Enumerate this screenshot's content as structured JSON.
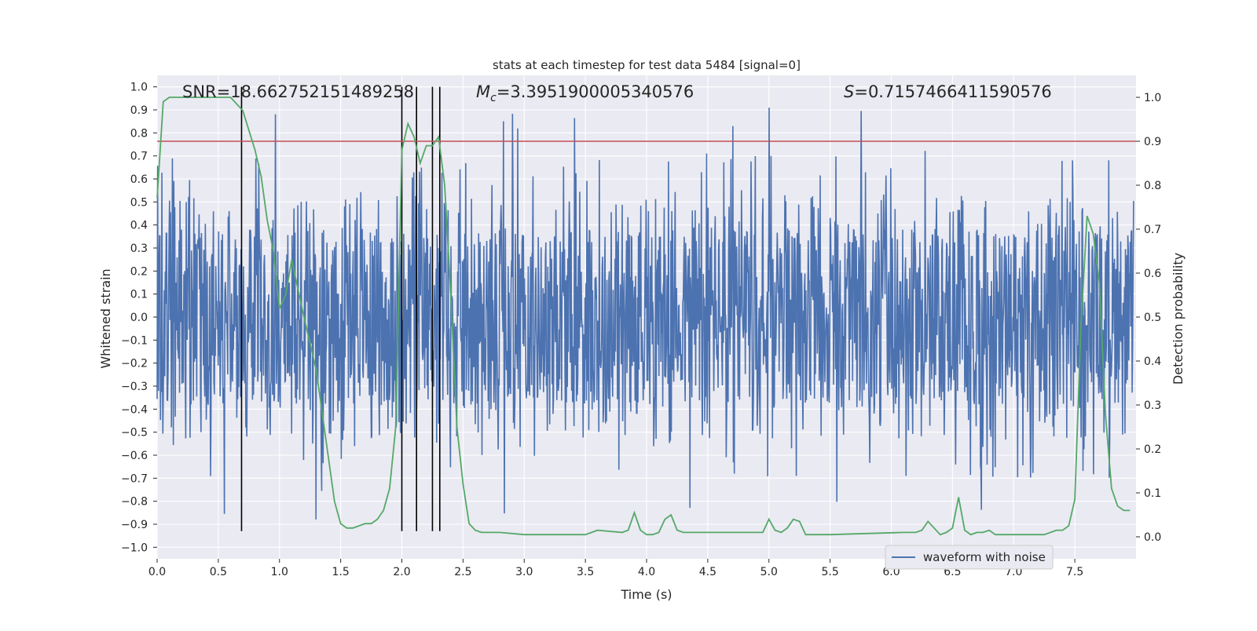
{
  "chart_data": {
    "type": "line",
    "title": "stats at each timestep for test data 5484 [signal=0]",
    "xlabel": "Time (s)",
    "ylabel_left": "Whitened strain",
    "ylabel_right": "Detection probability",
    "xlim": [
      0,
      8
    ],
    "ylim_left": [
      -1.05,
      1.05
    ],
    "ylim_right": [
      -0.05,
      1.05
    ],
    "x_ticks": [
      0.0,
      0.5,
      1.0,
      1.5,
      2.0,
      2.5,
      3.0,
      3.5,
      4.0,
      4.5,
      5.0,
      5.5,
      6.0,
      6.5,
      7.0,
      7.5
    ],
    "x_tick_labels": [
      "0.0",
      "0.5",
      "1.0",
      "1.5",
      "2.0",
      "2.5",
      "3.0",
      "3.5",
      "4.0",
      "4.5",
      "5.0",
      "5.5",
      "6.0",
      "6.5",
      "7.0",
      "7.5"
    ],
    "y_left_ticks": [
      1.0,
      0.9,
      0.8,
      0.7,
      0.6,
      0.5,
      0.4,
      0.3,
      0.2,
      0.1,
      0.0,
      -0.1,
      -0.2,
      -0.3,
      -0.4,
      -0.5,
      -0.6,
      -0.7,
      -0.8,
      -0.9,
      -1.0
    ],
    "y_left_tick_labels": [
      "1.0",
      "0.9",
      "0.8",
      "0.7",
      "0.6",
      "0.5",
      "0.4",
      "0.3",
      "0.2",
      "0.1",
      "0.0",
      "−0.1",
      "−0.2",
      "−0.3",
      "−0.4",
      "−0.5",
      "−0.6",
      "−0.7",
      "−0.8",
      "−0.9",
      "−1.0"
    ],
    "y_right_ticks": [
      1.0,
      0.9,
      0.8,
      0.7,
      0.6,
      0.5,
      0.4,
      0.3,
      0.2,
      0.1,
      0.0
    ],
    "y_right_tick_labels": [
      "1.0",
      "0.9",
      "0.8",
      "0.7",
      "0.6",
      "0.5",
      "0.4",
      "0.3",
      "0.2",
      "0.1",
      "0.0"
    ],
    "annotations": {
      "snr": "SNR=18.662752151489258",
      "mc_symbol": "M",
      "mc_subscript": "c",
      "mc_value": "=3.3951900005340576",
      "s_symbol": "S",
      "s_value": "=0.7157466411590576"
    },
    "legend": {
      "label": "waveform with noise",
      "placement": "lower-right"
    },
    "threshold_line": {
      "value": 0.9,
      "axis": "right",
      "color": "#c44e52"
    },
    "event_markers": {
      "times": [
        0.69,
        2.0,
        2.12,
        2.25,
        2.31
      ],
      "ymin": -0.93,
      "ymax": 1.0,
      "color": "#000000"
    },
    "series": [
      {
        "name": "waveform with noise",
        "axis": "left",
        "color": "#4c72b0",
        "kind": "noise",
        "n_samples": 2048,
        "base_amplitude": 0.38,
        "seed": 5484
      },
      {
        "name": "Detection probability",
        "axis": "right",
        "color": "#55a868",
        "x": [
          0.0,
          0.05,
          0.1,
          0.2,
          0.3,
          0.4,
          0.5,
          0.6,
          0.7,
          0.8,
          0.85,
          0.9,
          0.95,
          1.0,
          1.05,
          1.1,
          1.2,
          1.3,
          1.4,
          1.45,
          1.5,
          1.55,
          1.6,
          1.65,
          1.7,
          1.75,
          1.8,
          1.85,
          1.9,
          1.95,
          2.0,
          2.05,
          2.1,
          2.15,
          2.2,
          2.25,
          2.3,
          2.35,
          2.4,
          2.45,
          2.5,
          2.55,
          2.6,
          2.65,
          2.8,
          3.0,
          3.5,
          3.6,
          3.8,
          3.85,
          3.9,
          3.95,
          4.0,
          4.05,
          4.1,
          4.15,
          4.2,
          4.25,
          4.3,
          4.35,
          4.9,
          4.95,
          5.0,
          5.05,
          5.1,
          5.15,
          5.2,
          5.25,
          5.3,
          5.35,
          5.5,
          6.1,
          6.2,
          6.25,
          6.3,
          6.35,
          6.4,
          6.45,
          6.5,
          6.55,
          6.6,
          6.65,
          6.7,
          6.75,
          6.8,
          6.85,
          6.9,
          7.25,
          7.35,
          7.4,
          7.45,
          7.5,
          7.55,
          7.6,
          7.65,
          7.7,
          7.75,
          7.8,
          7.85,
          7.9,
          7.95
        ],
        "y": [
          0.77,
          0.99,
          1.0,
          1.0,
          1.0,
          1.0,
          1.0,
          1.0,
          0.97,
          0.88,
          0.82,
          0.72,
          0.65,
          0.52,
          0.55,
          0.63,
          0.5,
          0.38,
          0.18,
          0.08,
          0.03,
          0.02,
          0.02,
          0.025,
          0.03,
          0.03,
          0.04,
          0.06,
          0.11,
          0.25,
          0.88,
          0.94,
          0.91,
          0.85,
          0.89,
          0.89,
          0.91,
          0.8,
          0.55,
          0.25,
          0.12,
          0.03,
          0.015,
          0.01,
          0.01,
          0.005,
          0.005,
          0.015,
          0.01,
          0.015,
          0.055,
          0.015,
          0.005,
          0.005,
          0.01,
          0.04,
          0.05,
          0.015,
          0.01,
          0.01,
          0.01,
          0.01,
          0.04,
          0.015,
          0.01,
          0.02,
          0.04,
          0.035,
          0.005,
          0.005,
          0.005,
          0.01,
          0.01,
          0.015,
          0.035,
          0.02,
          0.005,
          0.01,
          0.02,
          0.09,
          0.015,
          0.005,
          0.01,
          0.01,
          0.015,
          0.005,
          0.005,
          0.005,
          0.015,
          0.015,
          0.025,
          0.085,
          0.48,
          0.73,
          0.69,
          0.58,
          0.28,
          0.11,
          0.07,
          0.06,
          0.06
        ]
      }
    ]
  }
}
